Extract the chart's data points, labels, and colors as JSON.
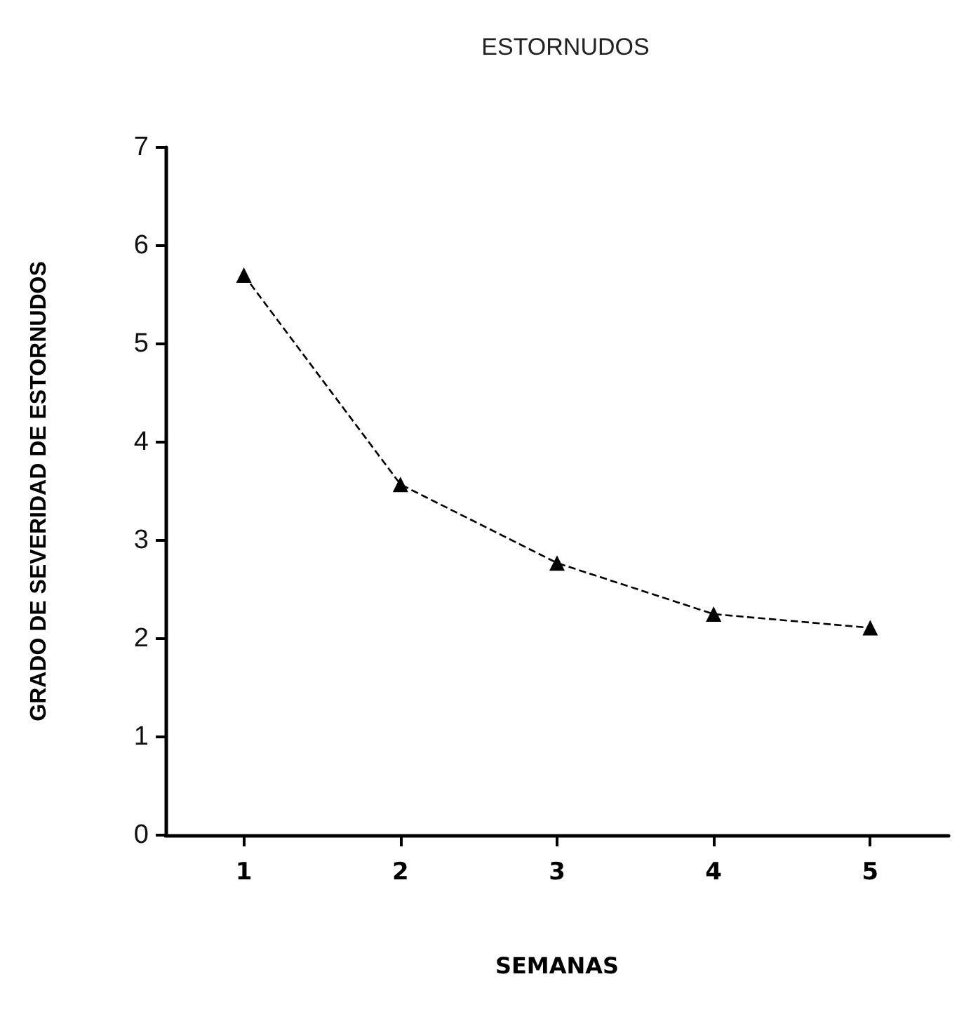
{
  "chart_data": {
    "type": "line",
    "title": "ESTORNUDOS",
    "xlabel": "SEMANAS",
    "ylabel": "GRADO DE SEVERIDAD DE ESTORNUDOS",
    "categories": [
      "1",
      "2",
      "3",
      "4",
      "5"
    ],
    "series": [
      {
        "color": "#000000",
        "values": [
          5.7,
          3.57,
          2.77,
          2.25,
          2.11
        ]
      }
    ],
    "ylim": [
      0,
      7
    ],
    "yticks": [
      0,
      1,
      2,
      3,
      4,
      5,
      6,
      7
    ],
    "grid": false,
    "marker": "triangle",
    "line_style": "dashed"
  }
}
